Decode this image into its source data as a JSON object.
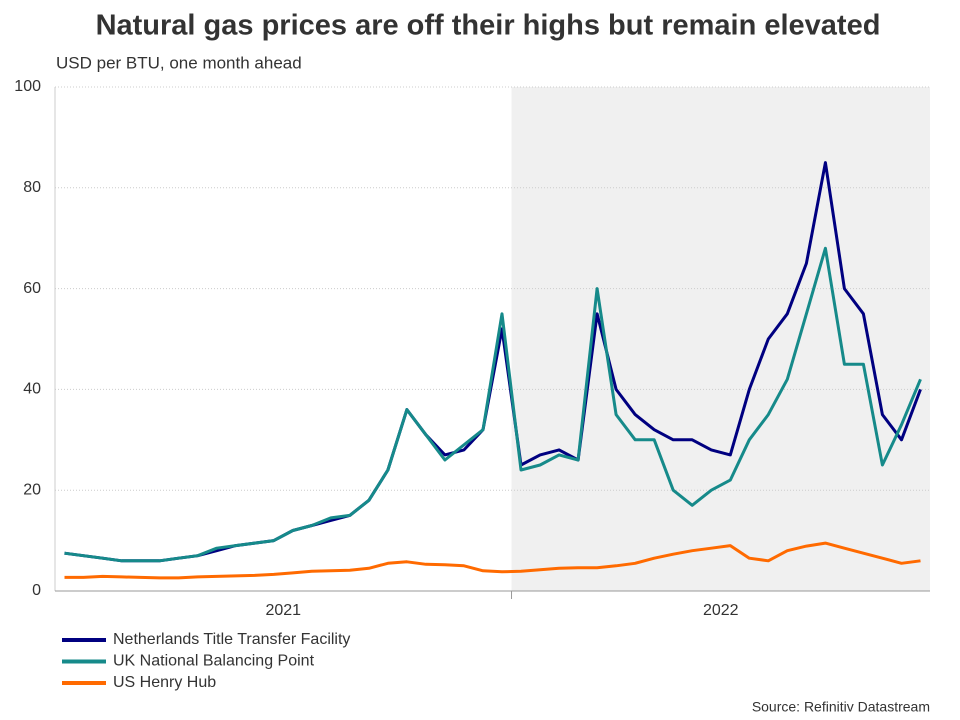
{
  "chart_data": {
    "type": "line",
    "title": "Natural gas prices are off their highs but remain elevated",
    "subtitle": "USD per BTU, one month ahead",
    "source": "Source: Refinitiv Datastream",
    "x": [
      "2021",
      "2021",
      "2021",
      "2021",
      "2021",
      "2021",
      "2021",
      "2021",
      "2021",
      "2021",
      "2021",
      "2021",
      "2021",
      "2021",
      "2021",
      "2021",
      "2021",
      "2021",
      "2021",
      "2021",
      "2021",
      "2021",
      "2021",
      "2021",
      "2022",
      "2022",
      "2022",
      "2022",
      "2022",
      "2022",
      "2022",
      "2022",
      "2022",
      "2022",
      "2022",
      "2022",
      "2022",
      "2022",
      "2022",
      "2022",
      "2022",
      "2022",
      "2022",
      "2022",
      "2022",
      "2022"
    ],
    "shaded_category": "2022",
    "series": [
      {
        "name": "Netherlands Title Transfer Facility",
        "color": "#000080",
        "values": [
          7.5,
          7,
          6.5,
          6,
          6,
          6,
          6.5,
          7,
          8,
          9,
          9.5,
          10,
          12,
          13,
          14,
          15,
          18,
          24,
          36,
          31,
          27,
          28,
          32,
          52,
          25,
          27,
          28,
          26,
          55,
          40,
          35,
          32,
          30,
          30,
          28,
          27,
          40,
          50,
          55,
          65,
          85,
          60,
          55,
          35,
          30,
          40
        ]
      },
      {
        "name": "UK National Balancing Point",
        "color": "#168a8a",
        "values": [
          7.5,
          7,
          6.5,
          6,
          6,
          6,
          6.5,
          7,
          8.5,
          9,
          9.5,
          10,
          12,
          13,
          14.5,
          15,
          18,
          24,
          36,
          31,
          26,
          29,
          32,
          55,
          24,
          25,
          27,
          26,
          60,
          35,
          30,
          30,
          20,
          17,
          20,
          22,
          30,
          35,
          42,
          55,
          68,
          45,
          45,
          25,
          33,
          42
        ]
      },
      {
        "name": "US Henry Hub",
        "color": "#ff6a00",
        "values": [
          2.7,
          2.7,
          2.9,
          2.8,
          2.7,
          2.6,
          2.6,
          2.8,
          2.9,
          3.0,
          3.1,
          3.3,
          3.6,
          3.9,
          4.0,
          4.1,
          4.5,
          5.5,
          5.8,
          5.3,
          5.2,
          5.0,
          4.0,
          3.8,
          3.9,
          4.2,
          4.5,
          4.6,
          4.6,
          5.0,
          5.5,
          6.5,
          7.3,
          8.0,
          8.5,
          9.0,
          6.5,
          6.0,
          8.0,
          8.9,
          9.5,
          8.5,
          7.5,
          6.5,
          5.5,
          6.0
        ]
      }
    ],
    "ylim": [
      0,
      100
    ],
    "yticks": [
      0,
      20,
      40,
      60,
      80,
      100
    ],
    "grid": true,
    "legend": "bottom-left"
  }
}
